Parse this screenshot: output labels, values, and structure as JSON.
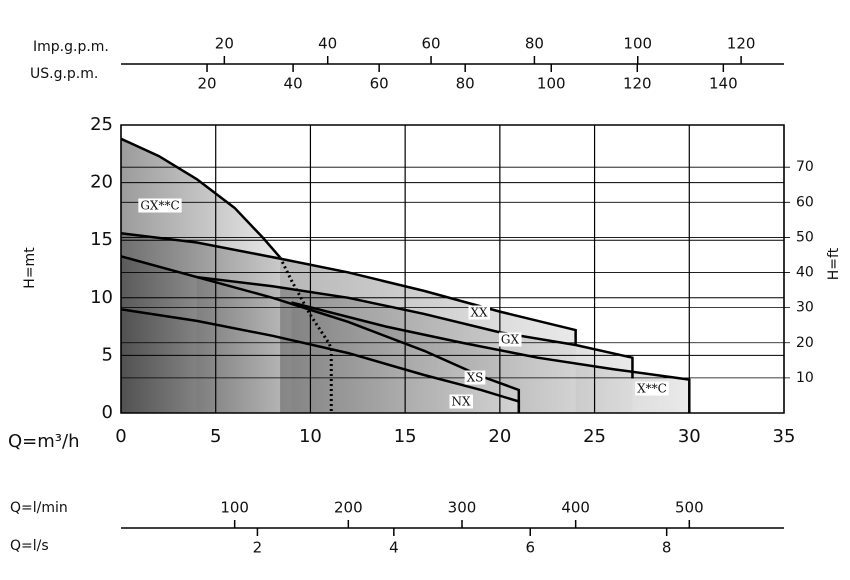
{
  "chart_data": {
    "type": "line",
    "xlabel": "Q=m³/h",
    "ylabel": "H=mt",
    "y2label": "H=ft",
    "xlim": [
      0,
      35
    ],
    "xticks": [
      0,
      5,
      10,
      15,
      20,
      25,
      30,
      35
    ],
    "ylim": [
      0,
      25
    ],
    "yticks": [
      0,
      5,
      10,
      15,
      20,
      25
    ],
    "y2lim": [
      0,
      82.02
    ],
    "y2ticks": [
      10,
      20,
      30,
      40,
      50,
      60,
      70
    ],
    "grid": true,
    "series": [
      {
        "name": "X**C",
        "color": "#000000",
        "x": [
          9,
          14,
          18,
          22,
          26,
          30,
          30
        ],
        "y": [
          9.6,
          7.5,
          6.1,
          4.8,
          3.8,
          2.9,
          0
        ]
      },
      {
        "name": "GX",
        "color": "#000000",
        "x": [
          4,
          8,
          12,
          16,
          20,
          24,
          27,
          27
        ],
        "y": [
          11.8,
          11.0,
          10.0,
          8.6,
          7.0,
          5.9,
          4.8,
          3.0
        ]
      },
      {
        "name": "XX",
        "color": "#000000",
        "x": [
          0,
          4,
          8.4,
          12,
          16,
          20,
          24,
          24
        ],
        "y": [
          15.6,
          14.8,
          13.4,
          12.2,
          10.6,
          8.8,
          7.2,
          5.9
        ]
      },
      {
        "name": "XS",
        "color": "#000000",
        "x": [
          0,
          4,
          8,
          12,
          16,
          19,
          21,
          21
        ],
        "y": [
          13.6,
          11.8,
          10.0,
          7.9,
          5.4,
          3.2,
          2.0,
          0
        ]
      },
      {
        "name": "NX",
        "color": "#000000",
        "x": [
          0,
          4,
          8,
          12,
          16,
          19,
          21,
          21
        ],
        "y": [
          9,
          8,
          6.7,
          5.2,
          3.3,
          2.0,
          1.0,
          0
        ]
      },
      {
        "name": "GX**C",
        "color": "#000000",
        "x": [
          0,
          2,
          4,
          6,
          7.5,
          8.4
        ],
        "y": [
          23.8,
          22.3,
          20.3,
          17.8,
          15.2,
          13.5
        ]
      }
    ],
    "dotted_line": {
      "x": [
        8.4,
        9,
        10,
        11,
        11.1,
        11.1
      ],
      "y": [
        13.5,
        11.5,
        8.5,
        6,
        5.5,
        0
      ]
    },
    "secondary_axes": [
      {
        "label": "Imp.g.p.m.",
        "xlim": [
          0,
          128.3
        ],
        "xticks": [
          20,
          40,
          60,
          80,
          100,
          120
        ]
      },
      {
        "label": "US.g.p.m.",
        "xlim": [
          0,
          154.1
        ],
        "xticks": [
          20,
          40,
          60,
          80,
          100,
          120,
          140
        ]
      },
      {
        "label": "Q=l/min",
        "xlim": [
          0,
          583.3
        ],
        "xticks": [
          100,
          200,
          300,
          400,
          500
        ]
      },
      {
        "label": "Q=l/s",
        "xlim": [
          0,
          9.72
        ],
        "xticks": [
          2,
          4,
          6,
          8
        ]
      }
    ]
  }
}
